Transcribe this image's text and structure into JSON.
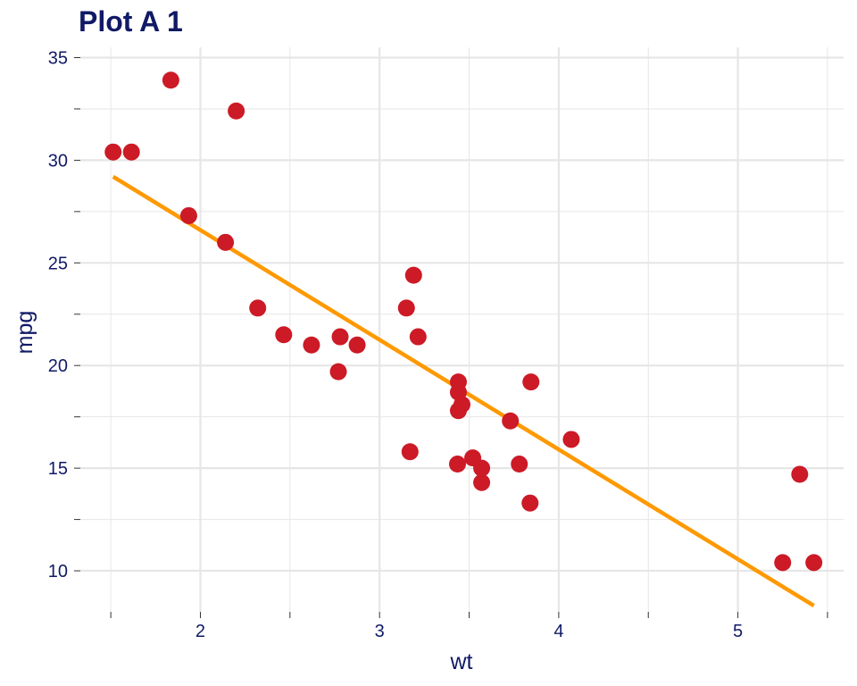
{
  "chart_data": {
    "type": "scatter",
    "title": "Plot A 1",
    "xlabel": "wt",
    "ylabel": "mpg",
    "xlim": [
      1.33,
      5.59
    ],
    "ylim": [
      8.0,
      35.5
    ],
    "x_ticks": [
      2,
      3,
      4,
      5
    ],
    "y_ticks": [
      10,
      15,
      20,
      25,
      30,
      35
    ],
    "grid": true,
    "colors": {
      "points": "#cc1a26",
      "fit_line": "#ff9900",
      "text": "#111a66",
      "grid": "#e6e6e6"
    },
    "points": [
      {
        "x": 2.62,
        "y": 21.0
      },
      {
        "x": 2.875,
        "y": 21.0
      },
      {
        "x": 2.32,
        "y": 22.8
      },
      {
        "x": 3.215,
        "y": 21.4
      },
      {
        "x": 3.44,
        "y": 18.7
      },
      {
        "x": 3.46,
        "y": 18.1
      },
      {
        "x": 3.57,
        "y": 14.3
      },
      {
        "x": 3.19,
        "y": 24.4
      },
      {
        "x": 3.15,
        "y": 22.8
      },
      {
        "x": 3.44,
        "y": 19.2
      },
      {
        "x": 3.44,
        "y": 17.8
      },
      {
        "x": 4.07,
        "y": 16.4
      },
      {
        "x": 3.73,
        "y": 17.3
      },
      {
        "x": 3.78,
        "y": 15.2
      },
      {
        "x": 5.25,
        "y": 10.4
      },
      {
        "x": 5.424,
        "y": 10.4
      },
      {
        "x": 5.345,
        "y": 14.7
      },
      {
        "x": 2.2,
        "y": 32.4
      },
      {
        "x": 1.615,
        "y": 30.4
      },
      {
        "x": 1.835,
        "y": 33.9
      },
      {
        "x": 2.465,
        "y": 21.5
      },
      {
        "x": 3.52,
        "y": 15.5
      },
      {
        "x": 3.435,
        "y": 15.2
      },
      {
        "x": 3.84,
        "y": 13.3
      },
      {
        "x": 3.845,
        "y": 19.2
      },
      {
        "x": 1.935,
        "y": 27.3
      },
      {
        "x": 2.14,
        "y": 26.0
      },
      {
        "x": 1.513,
        "y": 30.4
      },
      {
        "x": 3.17,
        "y": 15.8
      },
      {
        "x": 2.77,
        "y": 19.7
      },
      {
        "x": 3.57,
        "y": 15.0
      },
      {
        "x": 2.78,
        "y": 21.4
      }
    ],
    "fit_line": {
      "x": [
        1.513,
        5.424
      ],
      "y": [
        29.2,
        8.3
      ]
    }
  }
}
